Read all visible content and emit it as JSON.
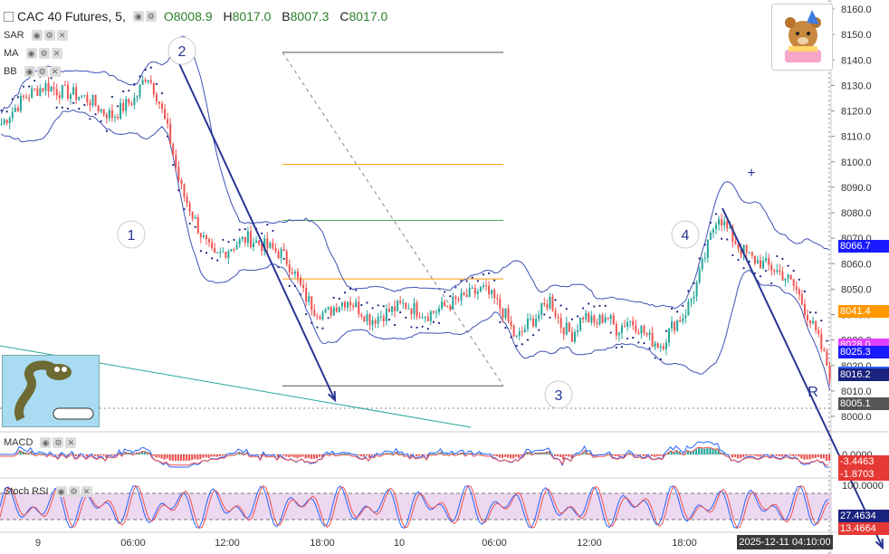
{
  "header": {
    "symbol": "CAC 40 Futures, 5,",
    "open_label": "O",
    "open": "8008.9",
    "high_label": "H",
    "high": "8017.0",
    "low_label": "B",
    "low": "8007.3",
    "close_label": "C",
    "close": "8017.0"
  },
  "indicators": [
    "SAR",
    "MA",
    "BB"
  ],
  "sub_panels": {
    "macd": "MACD",
    "stoch": "Stoch RSI"
  },
  "wave_labels": [
    "1",
    "2",
    "3",
    "4",
    "R",
    "+"
  ],
  "colors": {
    "candle_up": "#26a69a",
    "candle_down": "#ef5350",
    "bb": "#3f51b5",
    "sar": "#1a237e",
    "arrow": "#283593",
    "fib_orange": "#ff9800",
    "fib_green": "#4caf50",
    "fib_gray": "#555555",
    "trend_green": "#26a69a",
    "rsi_fill": "#e1bee7",
    "last_price": "#2962ff"
  },
  "chart_data": {
    "type": "candlestick",
    "price_axis": {
      "min": 8000,
      "max": 8160,
      "ticks": [
        "8160.0",
        "8150.0",
        "8140.0",
        "8130.0",
        "8120.0",
        "8110.0",
        "8100.0",
        "8090.0",
        "8080.0",
        "8070.0",
        "8060.0",
        "8050.0",
        "8040.0",
        "8030.0",
        "8020.0",
        "8010.0",
        "8000.0"
      ]
    },
    "time_ticks": [
      "9",
      "06:00",
      "12:00",
      "18:00",
      "10",
      "06:00",
      "12:00",
      "18:00"
    ],
    "price_path": [
      8115,
      8120,
      8125,
      8128,
      8130,
      8128,
      8127,
      8126,
      8124,
      8120,
      8118,
      8122,
      8125,
      8135,
      8125,
      8110,
      8090,
      8080,
      8070,
      8062,
      8065,
      8068,
      8070,
      8068,
      8066,
      8064,
      8058,
      8048,
      8042,
      8040,
      8044,
      8046,
      8042,
      8038,
      8040,
      8042,
      8044,
      8042,
      8040,
      8042,
      8044,
      8046,
      8048,
      8050,
      8046,
      8040,
      8030,
      8036,
      8040,
      8046,
      8036,
      8032,
      8040,
      8036,
      8040,
      8034,
      8038,
      8035,
      8030,
      8028,
      8036,
      8040,
      8050,
      8065,
      8080,
      8072,
      8066,
      8062,
      8060,
      8058,
      8055,
      8050,
      8040,
      8030,
      8017
    ],
    "fib_levels": [
      8143,
      8099,
      8077,
      8054,
      8012
    ],
    "price_tags": [
      {
        "value": "8066.7",
        "price": 8066.7,
        "color": "#1a1aff"
      },
      {
        "value": "8041.4",
        "price": 8041.4,
        "color": "#ff9800"
      },
      {
        "value": "8028.0",
        "price": 8028.0,
        "color": "#e040fb"
      },
      {
        "value": "8025.3",
        "price": 8025.3,
        "color": "#1a1aff"
      },
      {
        "value": "8017.0",
        "price": 8017.0,
        "color": "#2962ff"
      },
      {
        "value": "8016.2",
        "price": 8016.2,
        "color": "#1a237e"
      },
      {
        "value": "8005.1",
        "price": 8005.1,
        "color": "#555555"
      }
    ],
    "macd": {
      "axis_ticks": [
        "0.0000"
      ],
      "tags": [
        {
          "value": "-3.4463",
          "color": "#e53935"
        },
        {
          "value": "-1.8703",
          "color": "#e53935"
        }
      ]
    },
    "stoch_rsi": {
      "axis_ticks": [
        "100.0000"
      ],
      "tags": [
        {
          "value": "27.4634",
          "color": "#1a237e"
        },
        {
          "value": "13.4664",
          "color": "#e53935"
        }
      ]
    },
    "timestamp": "2025-12-11 04:10:00"
  }
}
